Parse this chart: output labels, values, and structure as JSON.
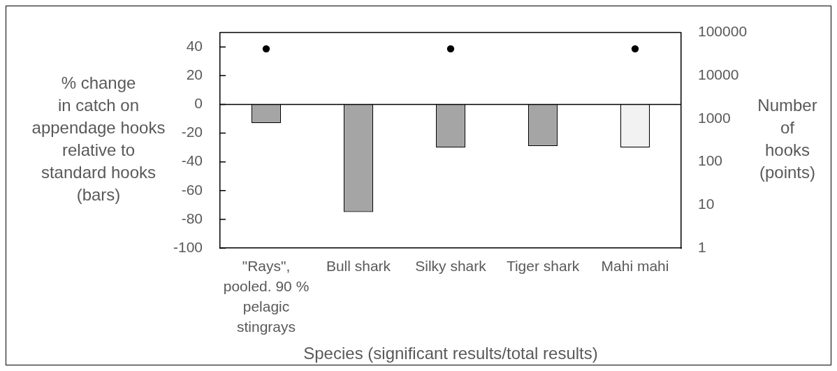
{
  "chart_data": {
    "type": "bar",
    "xlabel": "Species (significant results/total results)",
    "ylabel": "% change\nin catch on\nappendage hooks\nrelative to\nstandard hooks\n(bars)",
    "y2label": "Number\nof\nhooks\n(points)",
    "categories": [
      "\"Rays\", pooled. 90 % pelagic stingrays",
      "Bull shark",
      "Silky shark",
      "Tiger shark",
      "Mahi mahi"
    ],
    "series": [
      {
        "type": "bar",
        "colors": [
          "#a5a5a5",
          "#a5a5a5",
          "#a5a5a5",
          "#a5a5a5",
          "#f2f2f2"
        ],
        "values": [
          -13,
          -75,
          -30,
          -29,
          -30
        ]
      },
      {
        "type": "scatter",
        "axis": "y2",
        "color": "#000000",
        "x": [
          "\"Rays\", pooled. 90 % pelagic stingrays",
          "Silky shark",
          "Mahi mahi"
        ],
        "values": [
          42000,
          42000,
          42000
        ]
      }
    ],
    "ylim": [
      -100,
      50
    ],
    "yticks": [
      -100,
      -80,
      -60,
      -40,
      -20,
      0,
      20,
      40
    ],
    "y2lim": [
      1,
      100000
    ],
    "y2ticks": [
      1,
      10,
      100,
      1000,
      10000,
      100000
    ],
    "ref_lines": [
      {
        "axis": "y",
        "value": 0,
        "color": "#000000"
      }
    ],
    "log": "y2",
    "grid": false,
    "legend": false,
    "marker": "circle"
  }
}
